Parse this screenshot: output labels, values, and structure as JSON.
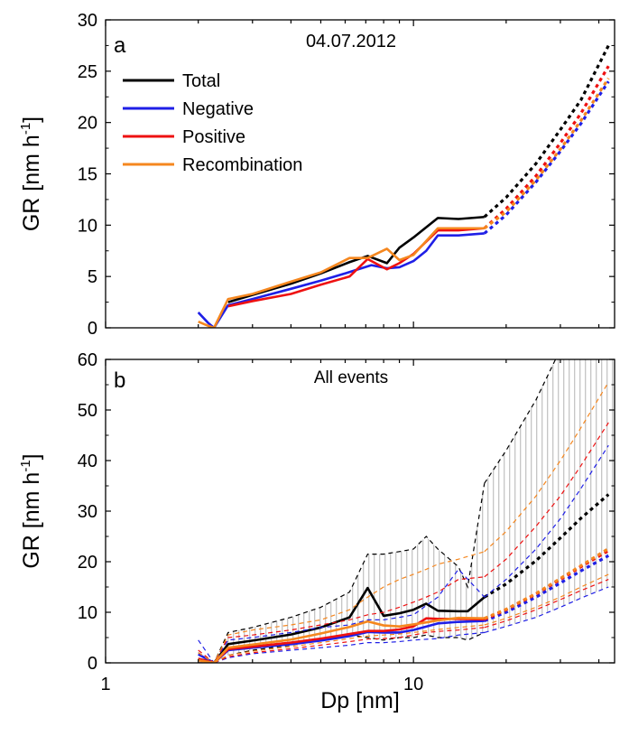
{
  "chart_data": [
    {
      "panel": "a",
      "type": "line",
      "title": "04.07.2012",
      "xlabel": "",
      "ylabel": "GR [nm h-1]",
      "ylabel_base": "GR [nm h",
      "ylabel_sup": "-1",
      "ylabel_close": "]",
      "xscale": "log",
      "xlim": [
        1,
        45
      ],
      "ylim": [
        0,
        30
      ],
      "yticks": [
        "0",
        "5",
        "10",
        "15",
        "20",
        "25",
        "30"
      ],
      "legend_position": "upper-left",
      "series": [
        {
          "name": "Total",
          "color": "#000000",
          "x": [
            2.5,
            3,
            4,
            5,
            6.2,
            7.1,
            8.2,
            9,
            10,
            12,
            14,
            17
          ],
          "y": [
            2.5,
            3.2,
            4.3,
            5.3,
            6.4,
            7.0,
            6.3,
            7.8,
            8.8,
            10.7,
            10.6,
            10.8
          ],
          "extrapolation": {
            "x": [
              17,
              20,
              25,
              30,
              35,
              43
            ],
            "y": [
              10.8,
              12.7,
              16.0,
              19.3,
              22.2,
              27.5
            ]
          }
        },
        {
          "name": "Negative",
          "color": "#1f1fe6",
          "x": [
            2,
            2.15,
            2.25,
            2.5,
            3,
            4,
            5,
            6,
            7.3,
            8.2,
            9,
            10,
            11,
            12,
            14,
            17
          ],
          "y": [
            1.5,
            0.5,
            0.0,
            2.2,
            2.8,
            3.8,
            4.6,
            5.3,
            6.1,
            5.8,
            5.9,
            6.5,
            7.5,
            9.0,
            9.0,
            9.2
          ],
          "extrapolation": {
            "x": [
              17,
              20,
              25,
              30,
              35,
              43
            ],
            "y": [
              9.2,
              11.0,
              14.2,
              17.2,
              19.9,
              24.0
            ]
          }
        },
        {
          "name": "Positive",
          "color": "#ee1111",
          "x": [
            2.5,
            3,
            4,
            5,
            6.2,
            7.1,
            8.2,
            9,
            10,
            12,
            14,
            17
          ],
          "y": [
            2.1,
            2.6,
            3.3,
            4.2,
            5.0,
            6.7,
            5.7,
            6.3,
            7.2,
            9.5,
            9.5,
            9.7
          ],
          "extrapolation": {
            "x": [
              17,
              20,
              25,
              30,
              35,
              43
            ],
            "y": [
              9.7,
              11.6,
              14.8,
              18.0,
              20.9,
              25.5
            ]
          }
        },
        {
          "name": "Recombination",
          "color": "#f5871f",
          "x": [
            2,
            2.15,
            2.25,
            2.5,
            3,
            4,
            5,
            6.2,
            7.1,
            8.2,
            9,
            10,
            12,
            14,
            17
          ],
          "y": [
            0.6,
            0.2,
            0.0,
            2.8,
            3.3,
            4.5,
            5.4,
            6.8,
            6.8,
            7.7,
            6.6,
            7.1,
            9.7,
            9.7,
            9.7
          ],
          "extrapolation": {
            "x": [
              17,
              20,
              25,
              30,
              35,
              43
            ],
            "y": [
              9.7,
              11.3,
              14.4,
              17.4,
              20.2,
              24.3
            ]
          }
        }
      ]
    },
    {
      "panel": "b",
      "type": "line",
      "title": "All events",
      "xlabel": "Dp [nm]",
      "ylabel": "GR [nm h-1]",
      "ylabel_base": "GR [nm h",
      "ylabel_sup": "-1",
      "ylabel_close": "]",
      "xscale": "log",
      "xlim": [
        1,
        45
      ],
      "ylim": [
        0,
        60
      ],
      "xticks": [
        "1",
        "10"
      ],
      "yticks": [
        "0",
        "10",
        "20",
        "30",
        "40",
        "50",
        "60"
      ],
      "series": [
        {
          "name": "Total",
          "color": "#000000",
          "x": [
            2,
            2.25,
            2.5,
            3,
            4,
            5,
            6.2,
            7.1,
            8,
            9,
            10,
            11,
            12,
            14,
            15,
            17
          ],
          "y": [
            0.8,
            0.0,
            3.7,
            4.4,
            5.6,
            7.0,
            9.0,
            14.8,
            9.3,
            9.8,
            10.5,
            11.7,
            10.3,
            10.2,
            10.2,
            13.0
          ],
          "upper": [
            2.0,
            0.0,
            6.0,
            7.0,
            9.0,
            11.0,
            14.0,
            21.5,
            21.5,
            22.0,
            22.5,
            25.0,
            22.5,
            19.0,
            15.0,
            35.5
          ],
          "lower": [
            0.0,
            0.0,
            1.5,
            2.5,
            3.5,
            4.5,
            5.5,
            5.0,
            4.5,
            5.0,
            5.0,
            5.5,
            5.0,
            5.0,
            4.5,
            6.0
          ],
          "extrapolation": {
            "x": [
              17,
              20,
              25,
              30,
              35,
              43
            ],
            "y": [
              13.0,
              15.6,
              20.2,
              24.7,
              28.6,
              33.3
            ]
          },
          "extrapolation_upper": {
            "x": [
              17,
              20,
              25,
              30
            ],
            "y": [
              35.5,
              42.0,
              52.0,
              62.0
            ]
          }
        },
        {
          "name": "Negative",
          "color": "#1f1fe6",
          "x": [
            2,
            2.25,
            2.5,
            3,
            4,
            5,
            6.2,
            7.1,
            8,
            9,
            10,
            12,
            14,
            17
          ],
          "y": [
            1.7,
            0.0,
            2.5,
            3.0,
            3.7,
            4.4,
            5.3,
            6.1,
            6.0,
            6.0,
            6.5,
            7.8,
            8.1,
            8.3
          ],
          "upper": [
            4.5,
            0.0,
            4.5,
            5.0,
            6.0,
            7.0,
            7.5,
            8.5,
            8.5,
            9.0,
            9.5,
            13.0,
            18.5,
            13.0
          ],
          "lower": [
            0.0,
            0.0,
            1.0,
            1.8,
            2.5,
            3.0,
            3.5,
            4.0,
            4.0,
            4.2,
            4.5,
            4.8,
            5.5,
            6.0
          ],
          "extrapolation": {
            "x": [
              17,
              20,
              25,
              30,
              35,
              43
            ],
            "y": [
              8.3,
              10.0,
              13.0,
              15.8,
              18.2,
              21.2
            ]
          },
          "extrapolation_upper": {
            "x": [
              17,
              20,
              25,
              30,
              35,
              43
            ],
            "y": [
              13.0,
              16.5,
              22.5,
              28.5,
              34.5,
              43.0
            ]
          },
          "extrapolation_lower": {
            "x": [
              17,
              20,
              25,
              30,
              35,
              43
            ],
            "y": [
              6.0,
              7.2,
              9.0,
              11.0,
              12.8,
              15.0
            ]
          }
        },
        {
          "name": "Positive",
          "color": "#ee1111",
          "x": [
            2,
            2.25,
            2.5,
            3,
            4,
            5,
            6.2,
            7.1,
            8,
            9,
            10,
            11,
            12,
            14,
            17
          ],
          "y": [
            0.8,
            0.0,
            2.7,
            3.2,
            4.0,
            4.8,
            5.7,
            6.3,
            6.3,
            6.6,
            7.2,
            8.8,
            8.7,
            8.7,
            8.6
          ],
          "upper": [
            2.5,
            0.0,
            5.0,
            5.5,
            6.5,
            7.5,
            8.5,
            9.5,
            10.0,
            11.0,
            12.0,
            13.0,
            14.0,
            16.5,
            17.0
          ],
          "lower": [
            0.0,
            0.0,
            1.2,
            2.0,
            2.8,
            3.5,
            4.2,
            4.7,
            4.8,
            5.0,
            5.5,
            6.0,
            6.2,
            6.5,
            7.0
          ],
          "extrapolation": {
            "x": [
              17,
              20,
              25,
              30,
              35,
              43
            ],
            "y": [
              8.6,
              10.5,
              13.6,
              16.5,
              19.0,
              22.2
            ]
          },
          "extrapolation_upper": {
            "x": [
              17,
              20,
              25,
              30,
              35,
              43
            ],
            "y": [
              17.0,
              20.5,
              27.0,
              33.0,
              39.0,
              47.5
            ]
          },
          "extrapolation_lower": {
            "x": [
              17,
              20,
              25,
              30,
              35,
              43
            ],
            "y": [
              7.0,
              8.3,
              10.5,
              12.5,
              14.3,
              16.5
            ]
          }
        },
        {
          "name": "Recombination",
          "color": "#f5871f",
          "x": [
            2,
            2.25,
            2.5,
            3,
            4,
            5,
            6.2,
            7.1,
            8,
            9,
            10,
            11,
            12,
            14,
            17
          ],
          "y": [
            0.5,
            0.0,
            3.0,
            3.6,
            4.6,
            5.8,
            7.1,
            8.2,
            7.4,
            7.2,
            7.6,
            8.0,
            8.4,
            8.9,
            8.8
          ],
          "upper": [
            2.0,
            0.0,
            5.5,
            6.5,
            7.5,
            8.5,
            10.5,
            13.0,
            15.0,
            16.5,
            17.5,
            18.5,
            19.5,
            20.5,
            22.0
          ],
          "lower": [
            0.0,
            0.0,
            1.5,
            2.3,
            3.2,
            4.0,
            4.8,
            5.3,
            5.5,
            5.7,
            6.0,
            6.3,
            6.6,
            7.0,
            7.5
          ],
          "extrapolation": {
            "x": [
              17,
              20,
              25,
              30,
              35,
              43
            ],
            "y": [
              8.8,
              10.6,
              13.7,
              16.7,
              19.2,
              22.6
            ]
          },
          "extrapolation_upper": {
            "x": [
              17,
              20,
              25,
              30,
              35,
              43
            ],
            "y": [
              22.0,
              26.0,
              33.0,
              40.0,
              46.5,
              55.5
            ]
          },
          "extrapolation_lower": {
            "x": [
              17,
              20,
              25,
              30,
              35,
              43
            ],
            "y": [
              7.5,
              8.8,
              11.0,
              13.0,
              15.0,
              17.5
            ]
          }
        }
      ],
      "band": {
        "color": "#a0a0a0",
        "description": "vertical hatch between upper and lower Total envelope"
      }
    }
  ]
}
